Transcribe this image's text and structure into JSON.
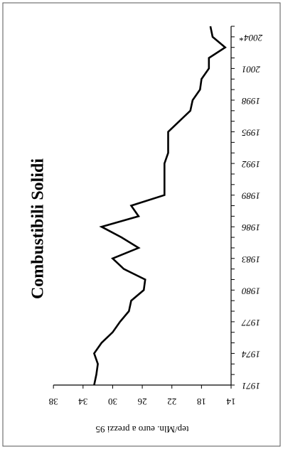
{
  "chart_data": {
    "type": "line",
    "title": "Combustibili Solidi",
    "xlabel": "",
    "ylabel": "tep/Mln. euro a prezzi 95",
    "x_tick_labels": [
      "1971",
      "1974",
      "1977",
      "1980",
      "1983",
      "1986",
      "1989",
      "1992",
      "1995",
      "1998",
      "2001",
      "2004*"
    ],
    "y_tick_labels": [
      "14",
      "18",
      "22",
      "26",
      "30",
      "34",
      "38"
    ],
    "ylim": [
      14,
      38
    ],
    "xlim": [
      1971,
      2005
    ],
    "grid": false,
    "legend": "none",
    "rotation": "chart rotated 90° clockwise (x axis runs top to bottom on the right side)",
    "series": [
      {
        "x": [
          1971,
          1972,
          1973,
          1974,
          1975,
          1976,
          1977,
          1978,
          1979,
          1980,
          1981,
          1982,
          1983,
          1984,
          1985,
          1986,
          1987,
          1988,
          1989,
          1990,
          1991,
          1992,
          1993,
          1994,
          1995,
          1996,
          1997,
          1998,
          1999,
          2000,
          2001,
          2002,
          2003,
          2004,
          2005
        ],
        "y": [
          32.5,
          32.2,
          32.0,
          32.5,
          31.5,
          30.0,
          29.0,
          27.8,
          27.5,
          25.8,
          25.6,
          28.5,
          30.0,
          26.5,
          28.8,
          31.5,
          26.5,
          27.5,
          23.0,
          23.0,
          23.0,
          23.0,
          22.5,
          22.5,
          22.5,
          21.0,
          19.5,
          19.2,
          18.2,
          18.0,
          17.0,
          17.0,
          14.8,
          16.5,
          16.8
        ]
      }
    ]
  }
}
